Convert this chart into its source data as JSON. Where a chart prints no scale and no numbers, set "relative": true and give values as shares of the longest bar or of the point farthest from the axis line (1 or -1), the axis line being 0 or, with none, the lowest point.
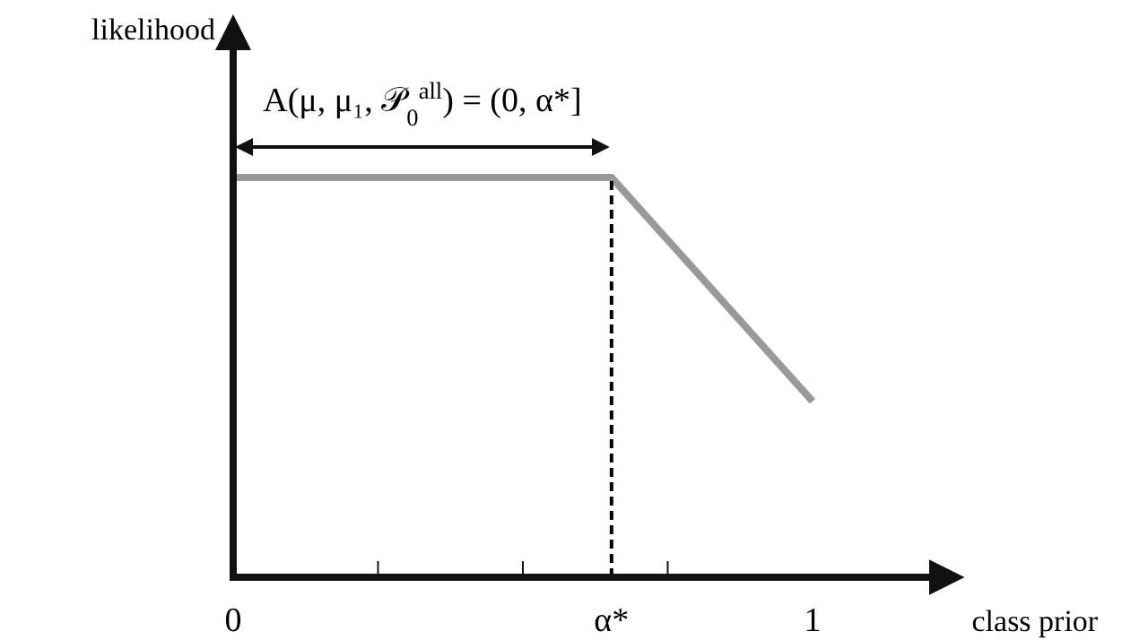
{
  "chart_data": {
    "type": "line",
    "relative": true,
    "ylabel": "likelihood",
    "xlabel": "class prior",
    "x": [
      0,
      0.653,
      1
    ],
    "series": [
      {
        "color": "#999999",
        "values": [
          1,
          1,
          0.44
        ]
      }
    ],
    "xlim": [
      0,
      1.25
    ],
    "xticks": [
      0,
      {
        "value": 0.25,
        "label": null
      },
      {
        "value": 0.5,
        "label": null
      },
      {
        "value": 0.653,
        "label": "α*"
      },
      {
        "value": 0.75,
        "label": null
      },
      1
    ],
    "ref_lines": [
      {
        "axis": "x",
        "value": 0.653,
        "color": "#000000",
        "line_style": "dashed"
      }
    ],
    "annotations": [
      "A(μ, μ₁, 𝒫$_{0}$$^{all}$) = (0, α*]"
    ]
  }
}
